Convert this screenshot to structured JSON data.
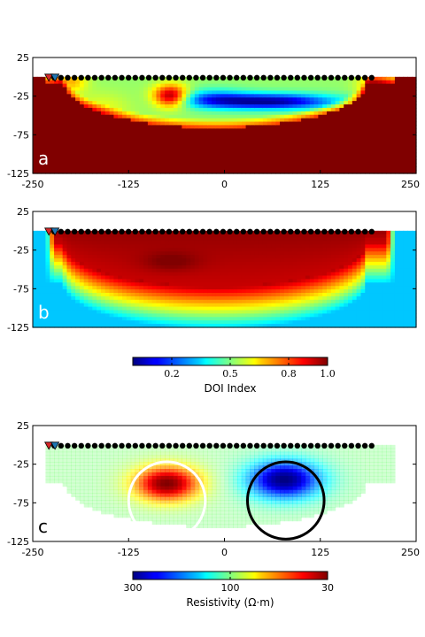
{
  "chart_data": [
    {
      "type": "heatmap",
      "panel_label": "a",
      "xlim": [
        -250,
        250
      ],
      "ylim": [
        -125,
        25
      ],
      "x_ticks": [
        "-250",
        "-125",
        "0",
        "125",
        "250"
      ],
      "y_ticks": [
        "25",
        "-25",
        "-75",
        "-125"
      ],
      "colormap": "jet",
      "electrodes": {
        "x_start": -222,
        "x_end": 192,
        "count": 48,
        "y": 0
      },
      "sources": [
        {
          "x": -229,
          "color": "#d62728"
        },
        {
          "x": -221,
          "color": "#1f77b4"
        }
      ]
    },
    {
      "type": "heatmap",
      "panel_label": "b",
      "xlim": [
        -250,
        250
      ],
      "ylim": [
        -125,
        25
      ],
      "x_ticks": [],
      "y_ticks": [
        "25",
        "-25",
        "-75",
        "-125"
      ],
      "colormap": "jet",
      "electrodes": {
        "x_start": -222,
        "x_end": 192,
        "count": 48,
        "y": 0
      },
      "sources": [
        {
          "x": -229,
          "color": "#d62728"
        },
        {
          "x": -221,
          "color": "#1f77b4"
        }
      ]
    },
    {
      "type": "colorbar",
      "label": "DOI Index",
      "range": [
        0,
        1
      ],
      "ticks": [
        "0.2",
        "0.5",
        "0.8",
        "1.0"
      ],
      "tick_values": [
        0.2,
        0.5,
        0.8,
        1.0
      ]
    },
    {
      "type": "heatmap",
      "panel_label": "c",
      "xlim": [
        -250,
        250
      ],
      "ylim": [
        -125,
        25
      ],
      "x_ticks": [
        "-250",
        "-125",
        "0",
        "125",
        "250"
      ],
      "y_ticks": [
        "25",
        "-25",
        "-75",
        "-125"
      ],
      "colormap": "jet",
      "electrodes": {
        "x_start": -222,
        "x_end": 192,
        "count": 48,
        "y": 0
      },
      "sources": [
        {
          "x": -229,
          "color": "#d62728"
        },
        {
          "x": -221,
          "color": "#1f77b4"
        }
      ],
      "circles": [
        {
          "cx": -75,
          "cy": -72,
          "r": 50,
          "color": "#ffffff"
        },
        {
          "cx": 80,
          "cy": -72,
          "r": 50,
          "color": "#000000"
        }
      ]
    },
    {
      "type": "colorbar",
      "label": "Resistivity (Ω·m)",
      "ticks": [
        "300",
        "100",
        "30"
      ],
      "tick_values": [
        0,
        0.5,
        1.0
      ]
    }
  ]
}
